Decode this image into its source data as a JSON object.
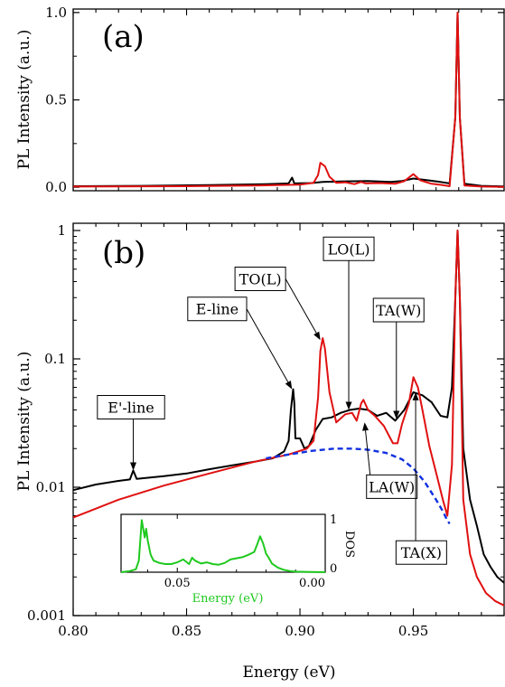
{
  "chart_data": [
    {
      "type": "line",
      "panel": "a",
      "panel_label": "(a)",
      "xlabel": "",
      "ylabel": "PL Intensity (a.u.)",
      "xlim": [
        0.8,
        0.99
      ],
      "ylim": [
        -0.02,
        1.02
      ],
      "x_ticks": [
        0.8,
        0.85,
        0.9,
        0.95
      ],
      "y_ticks": [
        {
          "v": 0.0,
          "label": "0.0"
        },
        {
          "v": 0.5,
          "label": "0.5"
        },
        {
          "v": 1.0,
          "label": "1.0"
        }
      ],
      "series": [
        {
          "color": "#000000",
          "points": [
            [
              0.8,
              0.006
            ],
            [
              0.83,
              0.008
            ],
            [
              0.86,
              0.012
            ],
            [
              0.885,
              0.018
            ],
            [
              0.895,
              0.022
            ],
            [
              0.8965,
              0.055
            ],
            [
              0.8975,
              0.022
            ],
            [
              0.905,
              0.024
            ],
            [
              0.91,
              0.03
            ],
            [
              0.92,
              0.034
            ],
            [
              0.93,
              0.036
            ],
            [
              0.94,
              0.03
            ],
            [
              0.945,
              0.036
            ],
            [
              0.95,
              0.05
            ],
            [
              0.955,
              0.042
            ],
            [
              0.962,
              0.03
            ],
            [
              0.966,
              0.022
            ],
            [
              0.9685,
              0.4
            ],
            [
              0.9695,
              1.0
            ],
            [
              0.9705,
              0.4
            ],
            [
              0.9725,
              0.02
            ],
            [
              0.98,
              0.008
            ],
            [
              0.99,
              0.005
            ]
          ]
        },
        {
          "color": "#e01010",
          "points": [
            [
              0.8,
              0.004
            ],
            [
              0.85,
              0.006
            ],
            [
              0.88,
              0.01
            ],
            [
              0.9,
              0.015
            ],
            [
              0.906,
              0.025
            ],
            [
              0.908,
              0.07
            ],
            [
              0.909,
              0.14
            ],
            [
              0.911,
              0.12
            ],
            [
              0.913,
              0.06
            ],
            [
              0.916,
              0.025
            ],
            [
              0.92,
              0.028
            ],
            [
              0.924,
              0.018
            ],
            [
              0.927,
              0.03
            ],
            [
              0.929,
              0.022
            ],
            [
              0.935,
              0.024
            ],
            [
              0.942,
              0.02
            ],
            [
              0.946,
              0.035
            ],
            [
              0.95,
              0.075
            ],
            [
              0.953,
              0.04
            ],
            [
              0.958,
              0.02
            ],
            [
              0.963,
              0.012
            ],
            [
              0.966,
              0.006
            ],
            [
              0.9685,
              0.4
            ],
            [
              0.9695,
              1.0
            ],
            [
              0.9705,
              0.4
            ],
            [
              0.9725,
              0.01
            ],
            [
              0.98,
              0.004
            ],
            [
              0.99,
              0.002
            ]
          ]
        }
      ]
    },
    {
      "type": "line",
      "panel": "b",
      "panel_label": "(b)",
      "xlabel": "Energy (eV)",
      "ylabel": "PL Intensity (a.u.)",
      "yscale": "log",
      "xlim": [
        0.8,
        0.99
      ],
      "ylim": [
        0.001,
        1
      ],
      "x_ticks": [
        {
          "v": 0.8,
          "label": "0.80"
        },
        {
          "v": 0.85,
          "label": "0.85"
        },
        {
          "v": 0.9,
          "label": "0.90"
        },
        {
          "v": 0.95,
          "label": "0.95"
        }
      ],
      "y_ticks": [
        {
          "v": 0.001,
          "label": "0.001"
        },
        {
          "v": 0.01,
          "label": "0.01"
        },
        {
          "v": 0.1,
          "label": "0.1"
        },
        {
          "v": 1,
          "label": "1"
        }
      ],
      "series": [
        {
          "color": "#000000",
          "style": "solid",
          "points": [
            [
              0.8,
              0.0095
            ],
            [
              0.81,
              0.0105
            ],
            [
              0.82,
              0.0112
            ],
            [
              0.825,
              0.0115
            ],
            [
              0.8265,
              0.0135
            ],
            [
              0.828,
              0.0116
            ],
            [
              0.84,
              0.0122
            ],
            [
              0.85,
              0.0128
            ],
            [
              0.86,
              0.0138
            ],
            [
              0.87,
              0.0148
            ],
            [
              0.88,
              0.0158
            ],
            [
              0.888,
              0.0168
            ],
            [
              0.893,
              0.019
            ],
            [
              0.895,
              0.023
            ],
            [
              0.896,
              0.04
            ],
            [
              0.897,
              0.058
            ],
            [
              0.8975,
              0.045
            ],
            [
              0.898,
              0.024
            ],
            [
              0.9,
              0.024
            ],
            [
              0.902,
              0.02
            ],
            [
              0.904,
              0.021
            ],
            [
              0.907,
              0.028
            ],
            [
              0.91,
              0.034
            ],
            [
              0.914,
              0.035
            ],
            [
              0.918,
              0.038
            ],
            [
              0.922,
              0.04
            ],
            [
              0.926,
              0.041
            ],
            [
              0.93,
              0.04
            ],
            [
              0.934,
              0.036
            ],
            [
              0.938,
              0.038
            ],
            [
              0.942,
              0.033
            ],
            [
              0.946,
              0.04
            ],
            [
              0.95,
              0.055
            ],
            [
              0.954,
              0.052
            ],
            [
              0.958,
              0.046
            ],
            [
              0.962,
              0.036
            ],
            [
              0.965,
              0.035
            ],
            [
              0.967,
              0.06
            ],
            [
              0.9685,
              0.3
            ],
            [
              0.9695,
              1.0
            ],
            [
              0.9705,
              0.3
            ],
            [
              0.972,
              0.02
            ],
            [
              0.975,
              0.008
            ],
            [
              0.978,
              0.005
            ],
            [
              0.981,
              0.003
            ],
            [
              0.984,
              0.0024
            ],
            [
              0.987,
              0.002
            ],
            [
              0.99,
              0.0018
            ]
          ]
        },
        {
          "color": "#e01010",
          "style": "solid",
          "points": [
            [
              0.8,
              0.0058
            ],
            [
              0.82,
              0.008
            ],
            [
              0.84,
              0.0103
            ],
            [
              0.86,
              0.0128
            ],
            [
              0.88,
              0.0158
            ],
            [
              0.895,
              0.018
            ],
            [
              0.903,
              0.02
            ],
            [
              0.906,
              0.023
            ],
            [
              0.908,
              0.05
            ],
            [
              0.909,
              0.115
            ],
            [
              0.91,
              0.145
            ],
            [
              0.911,
              0.12
            ],
            [
              0.913,
              0.055
            ],
            [
              0.916,
              0.032
            ],
            [
              0.92,
              0.037
            ],
            [
              0.923,
              0.038
            ],
            [
              0.925,
              0.033
            ],
            [
              0.927,
              0.045
            ],
            [
              0.928,
              0.048
            ],
            [
              0.93,
              0.04
            ],
            [
              0.933,
              0.036
            ],
            [
              0.937,
              0.03
            ],
            [
              0.941,
              0.022
            ],
            [
              0.943,
              0.022
            ],
            [
              0.945,
              0.031
            ],
            [
              0.948,
              0.045
            ],
            [
              0.95,
              0.072
            ],
            [
              0.952,
              0.06
            ],
            [
              0.954,
              0.04
            ],
            [
              0.957,
              0.021
            ],
            [
              0.96,
              0.013
            ],
            [
              0.963,
              0.008
            ],
            [
              0.965,
              0.006
            ],
            [
              0.967,
              0.015
            ],
            [
              0.9685,
              0.3
            ],
            [
              0.9695,
              1.0
            ],
            [
              0.9705,
              0.3
            ],
            [
              0.972,
              0.008
            ],
            [
              0.975,
              0.003
            ],
            [
              0.978,
              0.002
            ],
            [
              0.982,
              0.0015
            ],
            [
              0.986,
              0.0013
            ],
            [
              0.99,
              0.0012
            ]
          ]
        },
        {
          "color": "#1030e0",
          "style": "dashed",
          "points": [
            [
              0.885,
              0.0168
            ],
            [
              0.895,
              0.018
            ],
            [
              0.905,
              0.0192
            ],
            [
              0.915,
              0.02
            ],
            [
              0.923,
              0.02
            ],
            [
              0.93,
              0.0196
            ],
            [
              0.938,
              0.0185
            ],
            [
              0.945,
              0.0165
            ],
            [
              0.95,
              0.014
            ],
            [
              0.955,
              0.011
            ],
            [
              0.96,
              0.008
            ],
            [
              0.963,
              0.0065
            ],
            [
              0.965,
              0.0055
            ],
            [
              0.966,
              0.0052
            ]
          ]
        }
      ],
      "annotations": [
        {
          "label": "E'-line",
          "tip": [
            0.8265,
            0.0135
          ],
          "box": [
            0.8255,
            0.042
          ]
        },
        {
          "label": "E-line",
          "tip": [
            0.8965,
            0.058
          ],
          "box": [
            0.8635,
            0.245
          ]
        },
        {
          "label": "TO(L)",
          "tip": [
            0.909,
            0.14
          ],
          "box": [
            0.8825,
            0.42
          ]
        },
        {
          "label": "LO(L)",
          "tip": [
            0.9215,
            0.04
          ],
          "box": [
            0.9215,
            0.72
          ]
        },
        {
          "label": "TA(W)",
          "tip": [
            0.9425,
            0.034
          ],
          "box": [
            0.9435,
            0.24
          ]
        },
        {
          "label": "LA(W)",
          "tip": [
            0.9285,
            0.032
          ],
          "box": [
            0.9405,
            0.0101
          ]
        },
        {
          "label": "TA(X)",
          "tip": [
            0.951,
            0.055
          ],
          "box": [
            0.9535,
            0.0031
          ]
        }
      ]
    },
    {
      "type": "line",
      "panel": "inset",
      "xlabel": "Energy (eV)",
      "ylabel": "DOS",
      "xlim": [
        0.069,
        0.0
      ],
      "ylim": [
        0,
        1
      ],
      "x_ticks": [
        {
          "v": 0.05,
          "label": "0.05"
        },
        {
          "v": 0.0,
          "label": "0.00"
        }
      ],
      "y_ticks": [
        {
          "v": 0,
          "label": "0"
        },
        {
          "v": 1,
          "label": "1"
        }
      ],
      "series": [
        {
          "color": "#1fc91f",
          "points": [
            [
              0.069,
              0.0
            ],
            [
              0.066,
              0.02
            ],
            [
              0.064,
              0.05
            ],
            [
              0.063,
              0.2
            ],
            [
              0.062,
              0.9
            ],
            [
              0.061,
              0.6
            ],
            [
              0.0605,
              0.75
            ],
            [
              0.06,
              0.55
            ],
            [
              0.059,
              0.3
            ],
            [
              0.058,
              0.2
            ],
            [
              0.056,
              0.16
            ],
            [
              0.054,
              0.14
            ],
            [
              0.052,
              0.14
            ],
            [
              0.05,
              0.17
            ],
            [
              0.048,
              0.22
            ],
            [
              0.046,
              0.14
            ],
            [
              0.045,
              0.25
            ],
            [
              0.044,
              0.2
            ],
            [
              0.042,
              0.15
            ],
            [
              0.04,
              0.17
            ],
            [
              0.038,
              0.14
            ],
            [
              0.036,
              0.13
            ],
            [
              0.034,
              0.16
            ],
            [
              0.032,
              0.22
            ],
            [
              0.03,
              0.24
            ],
            [
              0.028,
              0.26
            ],
            [
              0.026,
              0.3
            ],
            [
              0.024,
              0.35
            ],
            [
              0.023,
              0.48
            ],
            [
              0.022,
              0.62
            ],
            [
              0.021,
              0.5
            ],
            [
              0.02,
              0.32
            ],
            [
              0.019,
              0.24
            ],
            [
              0.018,
              0.15
            ],
            [
              0.016,
              0.08
            ],
            [
              0.014,
              0.04
            ],
            [
              0.012,
              0.02
            ],
            [
              0.01,
              0.01
            ],
            [
              0.005,
              0.005
            ],
            [
              0.0,
              0.0
            ]
          ]
        }
      ]
    }
  ]
}
